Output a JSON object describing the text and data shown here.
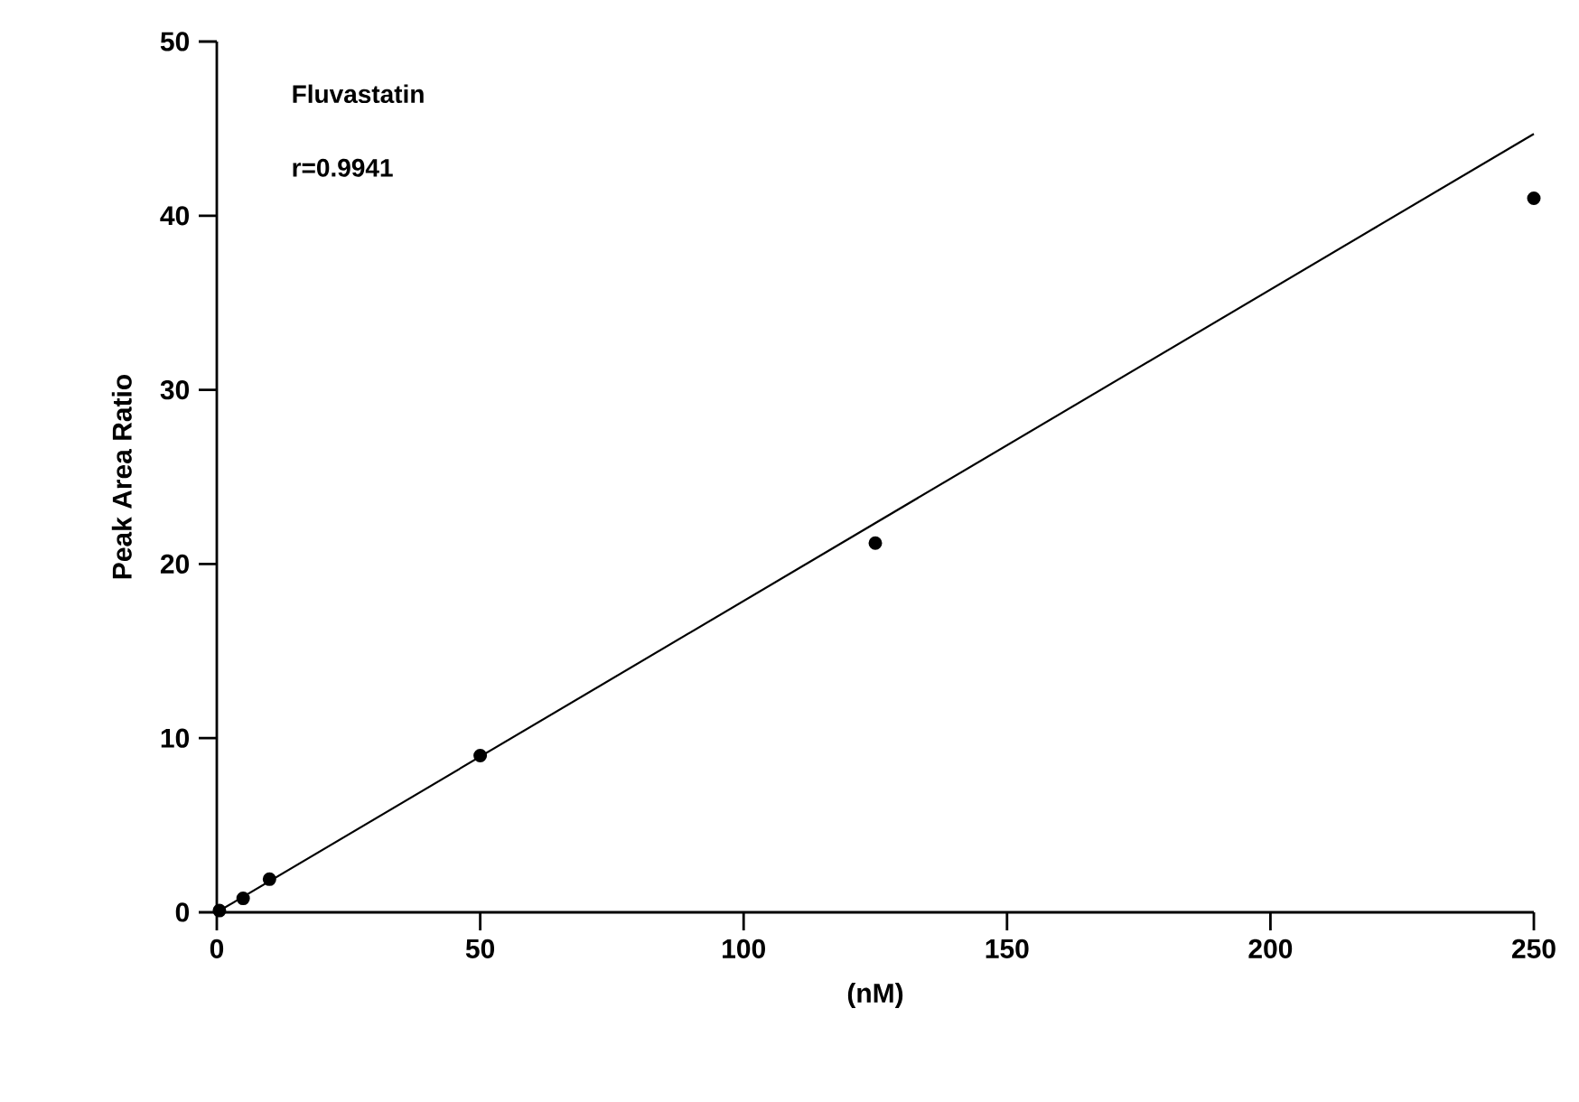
{
  "chart_data": {
    "type": "scatter",
    "xlabel": "(nM)",
    "ylabel": "Peak Area Ratio",
    "annotations": [
      "Fluvastatin",
      "r=0.9941"
    ],
    "series": [
      {
        "color": "#000000",
        "marker": "circle",
        "x": [
          0.5,
          5,
          10,
          50,
          125,
          250
        ],
        "values": [
          0.1,
          0.8,
          1.9,
          9.0,
          21.2,
          41.0
        ]
      },
      {
        "type": "line",
        "color": "#000000",
        "marker": "none",
        "x": [
          0,
          250
        ],
        "values": [
          0,
          44.7
        ]
      }
    ],
    "xlim": [
      0,
      250
    ],
    "ylim": [
      0,
      50
    ],
    "xticks": [
      0,
      50,
      100,
      150,
      200,
      250
    ],
    "yticks": [
      0,
      10,
      20,
      30,
      40,
      50
    ],
    "grid": false
  }
}
